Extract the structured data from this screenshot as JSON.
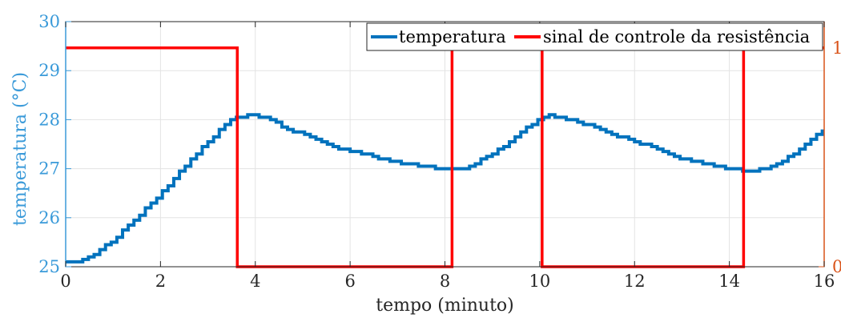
{
  "chart_data": {
    "type": "line",
    "xlabel": "tempo (minuto)",
    "ylabel_left": "temperatura (°C)",
    "xlim": [
      0,
      16
    ],
    "ylim_left": [
      25,
      30
    ],
    "ylim_right": [
      0,
      1.12
    ],
    "x_ticks": [
      "0",
      "2",
      "4",
      "6",
      "8",
      "10",
      "12",
      "14",
      "16"
    ],
    "y_ticks_left": [
      "25",
      "26",
      "27",
      "28",
      "29",
      "30"
    ],
    "y_ticks_right": [
      "0",
      "1"
    ],
    "grid": true,
    "legend_position": "top-right",
    "series": [
      {
        "name": "temperatura",
        "axis": "left",
        "color": "#0072BD",
        "x": [
          0,
          0.3,
          0.6,
          1.0,
          1.4,
          1.8,
          2.2,
          2.6,
          3.0,
          3.4,
          3.8,
          4.2,
          4.6,
          5.0,
          5.5,
          6.0,
          6.5,
          7.0,
          7.5,
          8.0,
          8.2,
          8.5,
          9.0,
          9.5,
          10.0,
          10.2,
          10.6,
          11.0,
          11.5,
          12.0,
          12.5,
          13.0,
          13.5,
          14.0,
          14.4,
          14.6,
          15.0,
          15.5,
          16.0
        ],
        "values": [
          25.1,
          25.1,
          25.25,
          25.55,
          25.9,
          26.3,
          26.7,
          27.15,
          27.55,
          27.95,
          28.1,
          28.05,
          27.85,
          27.7,
          27.5,
          27.35,
          27.25,
          27.12,
          27.05,
          27.0,
          26.97,
          27.05,
          27.3,
          27.65,
          28.05,
          28.1,
          28.0,
          27.9,
          27.72,
          27.55,
          27.4,
          27.2,
          27.1,
          27.0,
          26.95,
          26.97,
          27.1,
          27.4,
          27.85
        ]
      },
      {
        "name": "sinal de controle da resistência",
        "axis": "right",
        "color": "#FF0000",
        "x": [
          0,
          3.62,
          3.62,
          8.15,
          8.15,
          10.05,
          10.05,
          14.3,
          14.3,
          16
        ],
        "values": [
          1,
          1,
          0,
          0,
          1,
          1,
          0,
          0,
          1,
          1
        ]
      }
    ],
    "colors": {
      "left_axis": "#3A9AD9",
      "right_axis": "#D95319",
      "grid": "#e3e3e3"
    }
  }
}
